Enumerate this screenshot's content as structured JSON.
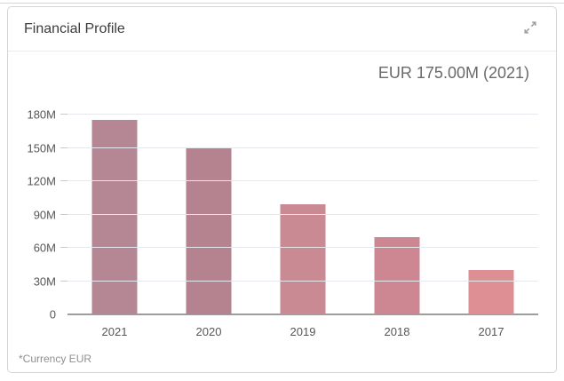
{
  "card": {
    "title": "Financial Profile"
  },
  "chart": {
    "headline": "EUR 175.00M (2021)",
    "footnote": "*Currency EUR"
  },
  "colors": {
    "grid": "#e7e7ee",
    "axis": "#9d9d9d",
    "card_border": "#d5d5d5"
  },
  "chart_data": {
    "type": "bar",
    "title": "EUR 175.00M (2021)",
    "categories": [
      "2021",
      "2020",
      "2019",
      "2018",
      "2017"
    ],
    "values": [
      175,
      150,
      99,
      70,
      40
    ],
    "unit": "M",
    "currency": "EUR",
    "bar_colors": [
      "#b58694",
      "#b4838f",
      "#c98a94",
      "#cc8792",
      "#dd8f93"
    ],
    "ylim": [
      0,
      180
    ],
    "yticks": [
      0,
      30,
      60,
      90,
      120,
      150,
      180
    ],
    "ytick_labels": [
      "0",
      "30M",
      "60M",
      "90M",
      "120M",
      "150M",
      "180M"
    ],
    "xlabel": "",
    "ylabel": "",
    "grid": true,
    "legend": false,
    "footnote": "*Currency EUR"
  }
}
